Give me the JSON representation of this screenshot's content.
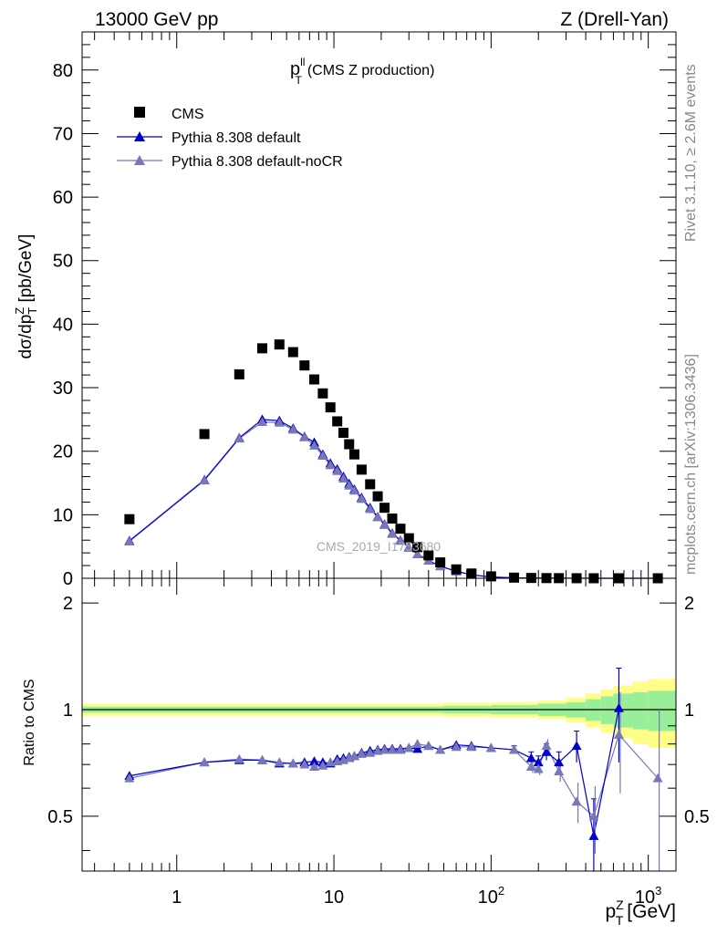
{
  "header": {
    "energy_label": "13000 GeV pp",
    "process_label": "Z (Drell-Yan)"
  },
  "side": {
    "rivet_label": "Rivet 3.1.10, ≥ 2.6M events",
    "source_label": "mcplots.cern.ch [arXiv:1306.3436]"
  },
  "colors": {
    "data": "#000000",
    "default": "#0000cc",
    "nocr": "#7878b8",
    "band_inner": "#99ee99",
    "band_outer": "#ffff88"
  },
  "chart_data": [
    {
      "type": "scatter",
      "panel": "main",
      "title_main": "p",
      "title_sup": "ll",
      "title_sub": "T",
      "title_rest": "(CMS Z production)",
      "ylabel": "dσ/dp_T^Z [pb/GeV]",
      "watermark": "CMS_2019_I1753680",
      "x_scale": "log",
      "xlim": [
        0.25,
        1500
      ],
      "ylim": [
        0,
        86
      ],
      "y_ticks": [
        0,
        10,
        20,
        30,
        40,
        50,
        60,
        70,
        80
      ],
      "legend": [
        "CMS",
        "Pythia 8.308 default",
        "Pythia 8.308 default-noCR"
      ],
      "legend_position": "top-left",
      "x": [
        0.5,
        1.5,
        2.5,
        3.5,
        4.5,
        5.5,
        6.5,
        7.5,
        8.5,
        9.5,
        10.5,
        11.5,
        12.5,
        13.5,
        15,
        17,
        19,
        21,
        23.5,
        26.5,
        30,
        34,
        40,
        47.5,
        60,
        75,
        100,
        140,
        180,
        225,
        270,
        350,
        450,
        650,
        1150
      ],
      "series": [
        {
          "name": "CMS",
          "marker": "square",
          "values": [
            9.3,
            22.7,
            32.1,
            36.2,
            36.8,
            35.6,
            33.5,
            31.3,
            29.1,
            26.9,
            24.7,
            22.9,
            21.1,
            19.5,
            17.1,
            14.8,
            12.9,
            11.1,
            9.4,
            7.8,
            6.3,
            4.9,
            3.6,
            2.5,
            1.4,
            0.75,
            0.3,
            0.1,
            0.05,
            0.03,
            0.02,
            0.01,
            0.005,
            0.002,
            0.0005
          ]
        },
        {
          "name": "Pythia 8.308 default",
          "marker": "triangle",
          "values": [
            5.9,
            15.5,
            22.1,
            25.0,
            24.8,
            23.6,
            22.3,
            21.4,
            19.5,
            18.1,
            17.2,
            16.0,
            14.9,
            14.0,
            12.7,
            11.1,
            9.7,
            8.5,
            7.1,
            6.0,
            4.9,
            3.8,
            2.8,
            1.9,
            1.1,
            0.55,
            0.2,
            0.07,
            0.035,
            0.02,
            0.015,
            0.008,
            0.003,
            0.002,
            0.0004
          ]
        },
        {
          "name": "Pythia 8.308 default-noCR",
          "marker": "triangle",
          "values": [
            5.8,
            15.4,
            22.0,
            24.6,
            24.5,
            23.4,
            22.2,
            20.9,
            19.3,
            17.8,
            16.9,
            15.7,
            14.6,
            13.8,
            12.5,
            10.9,
            9.6,
            8.4,
            7.0,
            5.9,
            4.8,
            3.8,
            2.8,
            1.9,
            1.1,
            0.54,
            0.2,
            0.07,
            0.034,
            0.02,
            0.014,
            0.006,
            0.003,
            0.0017,
            0.0003
          ]
        }
      ]
    },
    {
      "type": "scatter",
      "panel": "ratio",
      "ylabel": "Ratio to CMS",
      "xlabel_main": "p",
      "xlabel_sup": "Z",
      "xlabel_sub": "T",
      "xlabel_unit": "[GeV]",
      "x_scale": "log",
      "xlim": [
        0.25,
        1500
      ],
      "ylim": [
        0.35,
        2.35
      ],
      "y_ticks": [
        0.5,
        1,
        2
      ],
      "y_tick_labels": [
        "0.5",
        "1",
        "2"
      ],
      "x_tick_labels": [
        "1",
        "10",
        "10",
        "10"
      ],
      "x_tick_label_sups": [
        "",
        "",
        "2",
        "3"
      ],
      "x": [
        0.5,
        1.5,
        2.5,
        3.5,
        4.5,
        5.5,
        6.5,
        7.5,
        8.5,
        9.5,
        10.5,
        11.5,
        12.5,
        13.5,
        15,
        17,
        19,
        21,
        23.5,
        26.5,
        30,
        34,
        40,
        47.5,
        60,
        75,
        100,
        140,
        180,
        200,
        225,
        270,
        350,
        450,
        650,
        1150
      ],
      "band_edges": [
        0.25,
        50,
        100,
        200,
        300,
        400,
        500,
        600,
        800,
        1000,
        1500
      ],
      "band_inner_halfwidth": [
        0.02,
        0.025,
        0.03,
        0.04,
        0.05,
        0.07,
        0.09,
        0.11,
        0.12,
        0.13
      ],
      "band_outer_halfwidth": [
        0.04,
        0.045,
        0.05,
        0.06,
        0.08,
        0.11,
        0.14,
        0.17,
        0.2,
        0.22
      ],
      "series": [
        {
          "name": "Pythia 8.308 default",
          "values": [
            0.65,
            0.71,
            0.72,
            0.72,
            0.705,
            0.705,
            0.71,
            0.715,
            0.71,
            0.705,
            0.725,
            0.73,
            0.735,
            0.74,
            0.755,
            0.765,
            0.77,
            0.775,
            0.775,
            0.775,
            0.78,
            0.775,
            0.79,
            0.77,
            0.795,
            0.79,
            0.78,
            0.77,
            0.73,
            0.71,
            0.76,
            0.71,
            0.79,
            0.44,
            1.01,
            null
          ],
          "errors": [
            0,
            0,
            0,
            0,
            0,
            0,
            0,
            0,
            0,
            0,
            0,
            0,
            0,
            0,
            0,
            0,
            0,
            0,
            0,
            0,
            0,
            0,
            0,
            0,
            0,
            0,
            0,
            0.02,
            0.03,
            0.03,
            0.04,
            0.05,
            0.08,
            0.12,
            0.3,
            0
          ]
        },
        {
          "name": "Pythia 8.308 default-noCR",
          "values": [
            0.64,
            0.71,
            0.725,
            0.72,
            0.71,
            0.705,
            0.7,
            0.69,
            0.695,
            0.71,
            0.715,
            0.72,
            0.73,
            0.74,
            0.75,
            0.755,
            0.765,
            0.77,
            0.77,
            0.77,
            0.78,
            0.8,
            0.79,
            0.77,
            0.785,
            0.785,
            0.78,
            0.77,
            0.69,
            0.68,
            0.79,
            0.67,
            0.55,
            0.5,
            0.85,
            0.64
          ]
        }
      ]
    }
  ]
}
